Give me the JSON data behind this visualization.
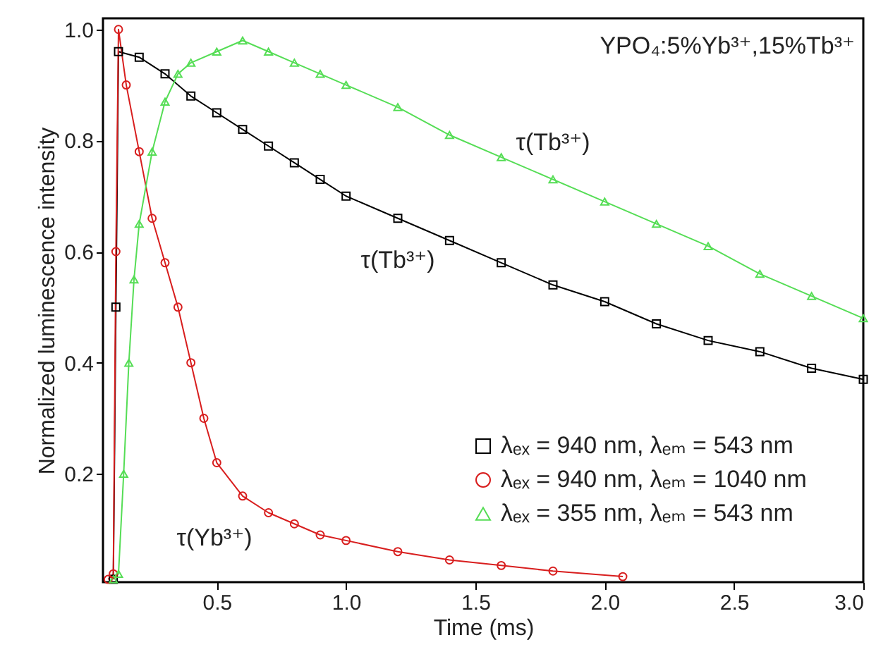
{
  "chart_data": {
    "type": "line",
    "xlabel": "Time (ms)",
    "ylabel": "Normalized luminescence intensity",
    "xlim": [
      0.06,
      3.0
    ],
    "ylim": [
      0.005,
      1.02
    ],
    "xticks": [
      0.5,
      {
        "value": 1,
        "label": "1.0"
      },
      1.5,
      {
        "value": 2,
        "label": "2.0"
      },
      2.5,
      {
        "value": 3,
        "label": "3.0"
      }
    ],
    "yticks": [
      0.2,
      0.4,
      0.6,
      0.8,
      {
        "value": 1,
        "label": "1.0"
      }
    ],
    "grid": false,
    "legend": "bottom right",
    "line_style": "solid",
    "annotations": [
      "YPO₄:5%Yb³⁺,15%Tb³⁺",
      {
        "text": "τ(Tb³⁺)",
        "x": 1.8,
        "y": 0.73
      },
      {
        "text": "τ(Tb³⁺)",
        "x": 1.2,
        "y": 0.66
      },
      {
        "text": "τ(Yb³⁺)",
        "x": 0.6,
        "y": 0.16
      }
    ],
    "series": [
      {
        "name": "λₑₓ = 940 nm, λₑₘ = 543 nm",
        "color": "#000000",
        "marker": "square",
        "x": [
          0.1,
          0.11,
          0.12,
          0.2,
          0.3,
          0.4,
          0.5,
          0.6,
          0.7,
          0.8,
          0.9,
          1.0,
          1.2,
          1.4,
          1.6,
          1.8,
          2.0,
          2.2,
          2.4,
          2.6,
          2.8,
          3.0
        ],
        "values": [
          0.01,
          0.5,
          0.96,
          0.95,
          0.92,
          0.88,
          0.85,
          0.82,
          0.79,
          0.76,
          0.73,
          0.7,
          0.66,
          0.62,
          0.58,
          0.54,
          0.51,
          0.47,
          0.44,
          0.42,
          0.39,
          0.37
        ]
      },
      {
        "name": "λₑₓ = 940 nm, λₑₘ = 1040 nm",
        "color": "#d81e1e",
        "marker": "circle",
        "x": [
          0.08,
          0.1,
          0.11,
          0.12,
          0.15,
          0.2,
          0.25,
          0.3,
          0.35,
          0.4,
          0.45,
          0.5,
          0.6,
          0.7,
          0.8,
          0.9,
          1.0,
          1.2,
          1.4,
          1.6,
          1.8,
          2.07
        ],
        "values": [
          0.01,
          0.02,
          0.6,
          1.0,
          0.9,
          0.78,
          0.66,
          0.58,
          0.5,
          0.4,
          0.3,
          0.22,
          0.16,
          0.13,
          0.11,
          0.09,
          0.08,
          0.06,
          0.045,
          0.035,
          0.025,
          0.015
        ]
      },
      {
        "name": "λₑₓ = 355 nm, λₑₘ = 543 nm",
        "color": "#55dd55",
        "marker": "triangle",
        "x": [
          0.1,
          0.12,
          0.14,
          0.16,
          0.18,
          0.2,
          0.25,
          0.3,
          0.35,
          0.4,
          0.5,
          0.6,
          0.7,
          0.8,
          0.9,
          1.0,
          1.2,
          1.4,
          1.6,
          1.8,
          2.0,
          2.2,
          2.4,
          2.6,
          2.8,
          3.0
        ],
        "values": [
          0.01,
          0.02,
          0.2,
          0.4,
          0.55,
          0.65,
          0.78,
          0.87,
          0.92,
          0.94,
          0.96,
          0.98,
          0.96,
          0.94,
          0.92,
          0.9,
          0.86,
          0.81,
          0.77,
          0.73,
          0.69,
          0.65,
          0.61,
          0.56,
          0.52,
          0.48
        ]
      }
    ]
  }
}
